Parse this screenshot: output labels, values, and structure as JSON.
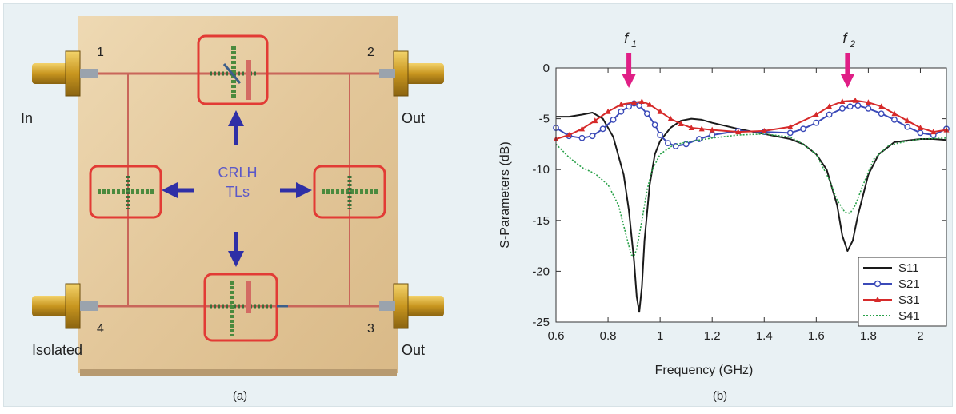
{
  "panel_a": {
    "caption": "(a)",
    "port_labels": {
      "p1": "1",
      "p2": "2",
      "p3": "3",
      "p4": "4"
    },
    "side_labels": {
      "in": "In",
      "out_top": "Out",
      "out_bottom": "Out",
      "isolated": "Isolated"
    },
    "center_label_line1": "CRLH",
    "center_label_line2": "TLs",
    "colors": {
      "board": "#e6cfa6",
      "trace": "#c9665a",
      "highlight": "#e23b35",
      "arrow": "#2f2fa6",
      "label": "#5b58c8"
    }
  },
  "panel_b": {
    "caption": "(b)",
    "markers": [
      {
        "label": "f",
        "sub": "1",
        "x": 0.88
      },
      {
        "label": "f",
        "sub": "2",
        "x": 1.72
      }
    ]
  },
  "chart_data": {
    "type": "line",
    "xlabel": "Frequency (GHz)",
    "ylabel": "S-Parameters (dB)",
    "xlim": [
      0.6,
      2.1
    ],
    "ylim": [
      -25,
      0
    ],
    "xticks": [
      0.6,
      0.8,
      1,
      1.2,
      1.4,
      1.6,
      1.8,
      2
    ],
    "xtick_labels": [
      "0.6",
      "0.8",
      "1",
      "1.2",
      "1.4",
      "1.6",
      "1.8",
      "2"
    ],
    "yticks": [
      0,
      -5,
      -10,
      -15,
      -20,
      -25
    ],
    "ytick_labels": [
      "0",
      "-5",
      "-10",
      "-15",
      "-20",
      "-25"
    ],
    "grid": false,
    "legend_position": "bottom-right",
    "series": [
      {
        "name": "S11",
        "color": "#1a1a1a",
        "marker": "none",
        "dash": "",
        "x": [
          0.6,
          0.65,
          0.7,
          0.74,
          0.78,
          0.82,
          0.86,
          0.88,
          0.9,
          0.91,
          0.92,
          0.93,
          0.94,
          0.96,
          0.98,
          1.0,
          1.04,
          1.08,
          1.12,
          1.16,
          1.2,
          1.3,
          1.4,
          1.5,
          1.55,
          1.6,
          1.64,
          1.68,
          1.7,
          1.72,
          1.74,
          1.76,
          1.8,
          1.84,
          1.9,
          2.0,
          2.05,
          2.1
        ],
        "y": [
          -4.8,
          -4.8,
          -4.6,
          -4.4,
          -5.0,
          -6.8,
          -10.5,
          -14.0,
          -19.0,
          -22.5,
          -24.0,
          -21.5,
          -17.0,
          -11.5,
          -8.5,
          -7.2,
          -5.9,
          -5.2,
          -5.0,
          -5.1,
          -5.4,
          -6.0,
          -6.5,
          -7.0,
          -7.5,
          -8.5,
          -10.0,
          -13.5,
          -16.5,
          -18.0,
          -17.0,
          -14.5,
          -10.5,
          -8.5,
          -7.3,
          -7.0,
          -7.0,
          -7.1
        ]
      },
      {
        "name": "S21",
        "color": "#3b4ab8",
        "marker": "circle",
        "dash": "",
        "x": [
          0.6,
          0.65,
          0.7,
          0.74,
          0.78,
          0.82,
          0.85,
          0.88,
          0.9,
          0.92,
          0.95,
          0.98,
          1.0,
          1.03,
          1.06,
          1.1,
          1.15,
          1.2,
          1.3,
          1.4,
          1.5,
          1.55,
          1.6,
          1.65,
          1.7,
          1.73,
          1.76,
          1.8,
          1.85,
          1.9,
          1.95,
          2.0,
          2.05,
          2.1
        ],
        "y": [
          -5.9,
          -6.7,
          -6.9,
          -6.7,
          -6.0,
          -5.1,
          -4.3,
          -3.8,
          -3.5,
          -3.7,
          -4.5,
          -5.6,
          -6.6,
          -7.4,
          -7.7,
          -7.5,
          -7.0,
          -6.6,
          -6.2,
          -6.3,
          -6.4,
          -6.0,
          -5.4,
          -4.6,
          -4.0,
          -3.8,
          -3.7,
          -4.0,
          -4.5,
          -5.1,
          -5.8,
          -6.4,
          -6.6,
          -6.0
        ]
      },
      {
        "name": "S31",
        "color": "#d62a2a",
        "marker": "triangle",
        "dash": "",
        "x": [
          0.6,
          0.65,
          0.7,
          0.75,
          0.8,
          0.85,
          0.9,
          0.93,
          0.96,
          1.0,
          1.04,
          1.08,
          1.12,
          1.16,
          1.2,
          1.3,
          1.4,
          1.5,
          1.6,
          1.65,
          1.7,
          1.75,
          1.8,
          1.85,
          1.9,
          1.95,
          2.0,
          2.05,
          2.1
        ],
        "y": [
          -7.0,
          -6.6,
          -6.0,
          -5.2,
          -4.3,
          -3.6,
          -3.4,
          -3.3,
          -3.6,
          -4.3,
          -5.0,
          -5.5,
          -5.9,
          -6.0,
          -6.1,
          -6.3,
          -6.2,
          -5.8,
          -4.6,
          -3.8,
          -3.3,
          -3.2,
          -3.4,
          -3.8,
          -4.5,
          -5.2,
          -5.9,
          -6.3,
          -6.1
        ]
      },
      {
        "name": "S41",
        "color": "#2aa14a",
        "marker": "none",
        "dash": "2,2",
        "x": [
          0.6,
          0.65,
          0.7,
          0.75,
          0.8,
          0.84,
          0.86,
          0.88,
          0.89,
          0.9,
          0.91,
          0.93,
          0.95,
          0.97,
          1.0,
          1.05,
          1.1,
          1.2,
          1.3,
          1.4,
          1.5,
          1.55,
          1.6,
          1.65,
          1.68,
          1.71,
          1.73,
          1.75,
          1.78,
          1.82,
          1.88,
          1.95,
          2.0,
          2.1
        ],
        "y": [
          -7.5,
          -8.8,
          -9.8,
          -10.4,
          -11.5,
          -13.5,
          -15.5,
          -17.5,
          -18.4,
          -18.5,
          -17.8,
          -15.0,
          -12.0,
          -10.0,
          -8.5,
          -7.6,
          -7.3,
          -6.9,
          -6.6,
          -6.5,
          -6.8,
          -7.5,
          -8.5,
          -11.0,
          -13.0,
          -14.2,
          -14.3,
          -13.5,
          -11.5,
          -9.0,
          -7.6,
          -7.2,
          -7.0,
          -6.9
        ]
      }
    ]
  }
}
